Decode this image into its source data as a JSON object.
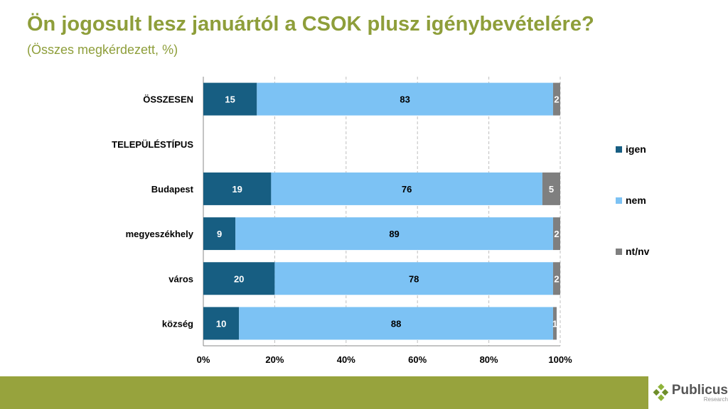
{
  "chart_data": {
    "type": "bar",
    "orientation": "horizontal",
    "stacked": true,
    "title": "Ön jogosult lesz januártól a CSOK plusz igénybevételére?",
    "subtitle": "(Összes megkérdezett, %)",
    "categories": [
      "ÖSSZESEN",
      "TELEPÜLÉSTÍPUS",
      "Budapest",
      "megyeszékhely",
      "város",
      "község"
    ],
    "bold_categories": [
      "ÖSSZESEN",
      "TELEPÜLÉSTÍPUS"
    ],
    "series": [
      {
        "name": "igen",
        "color": "#175E82",
        "values": [
          15,
          null,
          19,
          9,
          20,
          10
        ]
      },
      {
        "name": "nem",
        "color": "#7CC2F4",
        "values": [
          83,
          null,
          76,
          89,
          78,
          88
        ]
      },
      {
        "name": "nt/nv",
        "color": "#7F7F7F",
        "values": [
          2,
          null,
          5,
          2,
          2,
          1
        ]
      }
    ],
    "xlim": [
      0,
      100
    ],
    "xticks": [
      "0%",
      "20%",
      "40%",
      "60%",
      "80%",
      "100%"
    ],
    "grid": true,
    "legend_position": "right"
  },
  "brand": {
    "name": "Publicus",
    "sub": "Research"
  }
}
